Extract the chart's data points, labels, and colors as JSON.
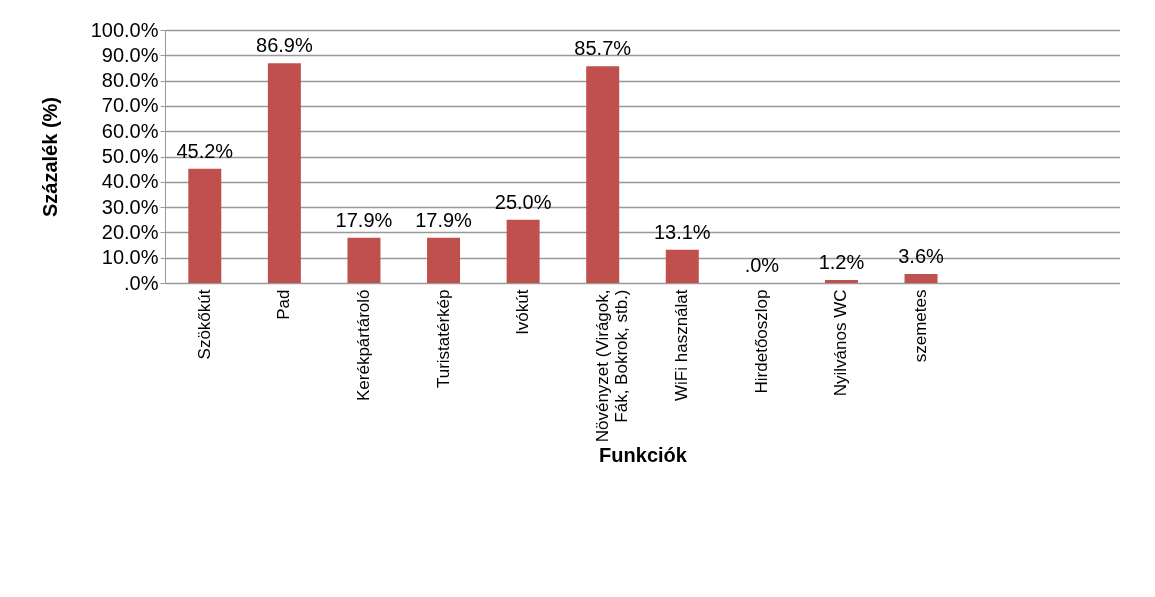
{
  "chart_data": {
    "type": "bar",
    "xlabel": "Funkciók",
    "ylabel": "Százalék (%)",
    "categories": [
      "Szökőkút",
      "Pad",
      "Kerékpártároló",
      "Turistatérkép",
      "Ivókút",
      "Növényzet (Virágok, Fák, Bokrok, stb.)",
      "WiFi használat",
      "Hirdetőoszlop",
      "Nyilvános WC",
      "szemetes",
      null,
      null
    ],
    "values": [
      45.2,
      86.9,
      17.9,
      17.9,
      25.0,
      85.7,
      13.1,
      0.0,
      1.2,
      3.6,
      null,
      null
    ],
    "value_labels": [
      "45.2%",
      "86.9%",
      "17.9%",
      "17.9%",
      "25.0%",
      "85.7%",
      "13.1%",
      ".0%",
      "1.2%",
      "3.6%",
      null,
      null
    ],
    "color": "#c0504d",
    "ylim": [
      0,
      100
    ],
    "yticks": [
      {
        "value": 0,
        "label": ".0%"
      },
      {
        "value": 10,
        "label": "10.0%"
      },
      {
        "value": 20,
        "label": "20.0%"
      },
      {
        "value": 30,
        "label": "30.0%"
      },
      {
        "value": 40,
        "label": "40.0%"
      },
      {
        "value": 50,
        "label": "50.0%"
      },
      {
        "value": 60,
        "label": "60.0%"
      },
      {
        "value": 70,
        "label": "70.0%"
      },
      {
        "value": 80,
        "label": "80.0%"
      },
      {
        "value": 90,
        "label": "90.0%"
      },
      {
        "value": 100,
        "label": "100.0%"
      }
    ],
    "grid": "y"
  }
}
